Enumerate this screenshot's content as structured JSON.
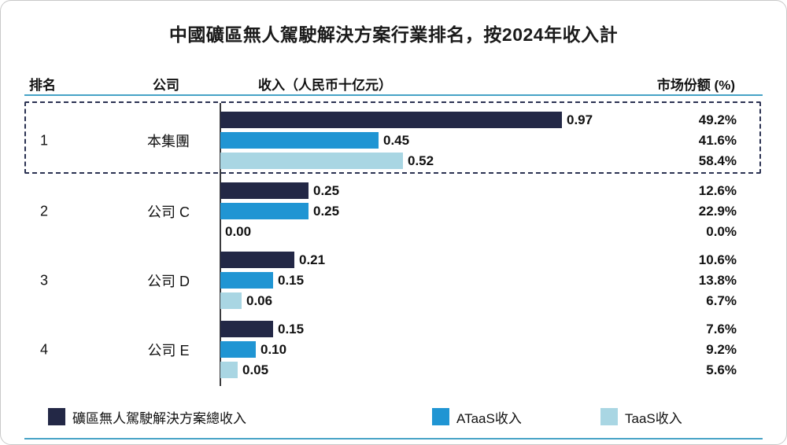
{
  "title": "中國礦區無人駕駛解決方案行業排名，按2024年收入計",
  "columns": {
    "rank": "排名",
    "company": "公司",
    "revenue": "收入（人民币十亿元）",
    "share": "市场份额 (%)"
  },
  "colors": {
    "total": "#232846",
    "ataas": "#2095d3",
    "taas": "#a9d6e3",
    "rule": "#46a3c6",
    "highlight_border": "#2b3252"
  },
  "chart_data": {
    "type": "bar",
    "orientation": "horizontal",
    "title": "中國礦區無人駕駛解決方案行業排名，按2024年收入計",
    "value_axis_label": "收入（人民币十亿元）",
    "share_axis_label": "市场份额 (%)",
    "xlim": [
      0,
      1.0
    ],
    "series_names": [
      "礦區無人駕駛解決方案總收入",
      "ATaaS收入",
      "TaaS收入"
    ],
    "rows": [
      {
        "rank": "1",
        "company": "本集團",
        "highlight": true,
        "values": [
          0.97,
          0.45,
          0.52
        ],
        "labels": [
          "0.97",
          "0.45",
          "0.52"
        ],
        "shares": [
          "49.2%",
          "41.6%",
          "58.4%"
        ]
      },
      {
        "rank": "2",
        "company": "公司 C",
        "highlight": false,
        "values": [
          0.25,
          0.25,
          0.0
        ],
        "labels": [
          "0.25",
          "0.25",
          "0.00"
        ],
        "shares": [
          "12.6%",
          "22.9%",
          "0.0%"
        ]
      },
      {
        "rank": "3",
        "company": "公司 D",
        "highlight": false,
        "values": [
          0.21,
          0.15,
          0.06
        ],
        "labels": [
          "0.21",
          "0.15",
          "0.06"
        ],
        "shares": [
          "10.6%",
          "13.8%",
          "6.7%"
        ]
      },
      {
        "rank": "4",
        "company": "公司 E",
        "highlight": false,
        "values": [
          0.15,
          0.1,
          0.05
        ],
        "labels": [
          "0.15",
          "0.10",
          "0.05"
        ],
        "shares": [
          "7.6%",
          "9.2%",
          "5.6%"
        ]
      }
    ]
  },
  "legend": {
    "items": [
      {
        "label": "礦區無人駕駛解決方案總收入"
      },
      {
        "label": "ATaaS收入"
      },
      {
        "label": "TaaS收入"
      }
    ]
  }
}
